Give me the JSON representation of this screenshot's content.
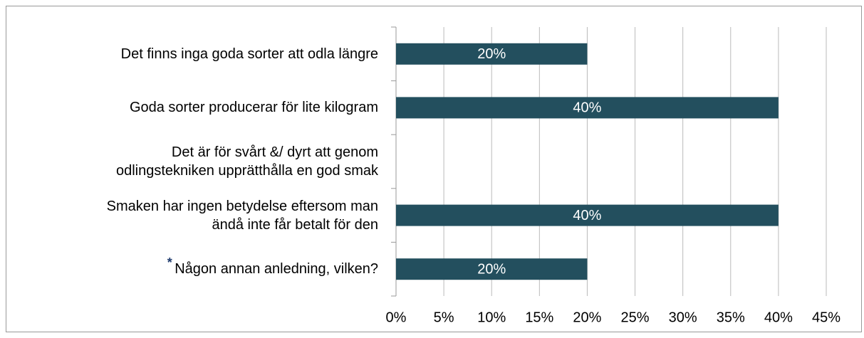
{
  "chart_data": {
    "type": "bar",
    "orientation": "horizontal",
    "categories": [
      "Det finns inga goda sorter att odla längre",
      "Goda sorter producerar för lite kilogram",
      "Det är för svårt &/ dyrt att genom\nodlingstekniken upprätthålla en god smak",
      "Smaken har ingen betydelse eftersom man\nändå inte får betalt för den",
      "Någon annan anledning, vilken?"
    ],
    "values": [
      20,
      40,
      0,
      40,
      20
    ],
    "value_labels": [
      "20%",
      "40%",
      null,
      "40%",
      "20%"
    ],
    "color": "#234f5e",
    "xlim": [
      0,
      45
    ],
    "xticks": [
      {
        "value": 0,
        "label": "0%"
      },
      {
        "value": 5,
        "label": "5%"
      },
      {
        "value": 10,
        "label": "10%"
      },
      {
        "value": 15,
        "label": "15%"
      },
      {
        "value": 20,
        "label": "20%"
      },
      {
        "value": 25,
        "label": "25%"
      },
      {
        "value": 30,
        "label": "30%"
      },
      {
        "value": 35,
        "label": "35%"
      },
      {
        "value": 40,
        "label": "40%"
      },
      {
        "value": 45,
        "label": "45%"
      }
    ],
    "grid": true
  }
}
